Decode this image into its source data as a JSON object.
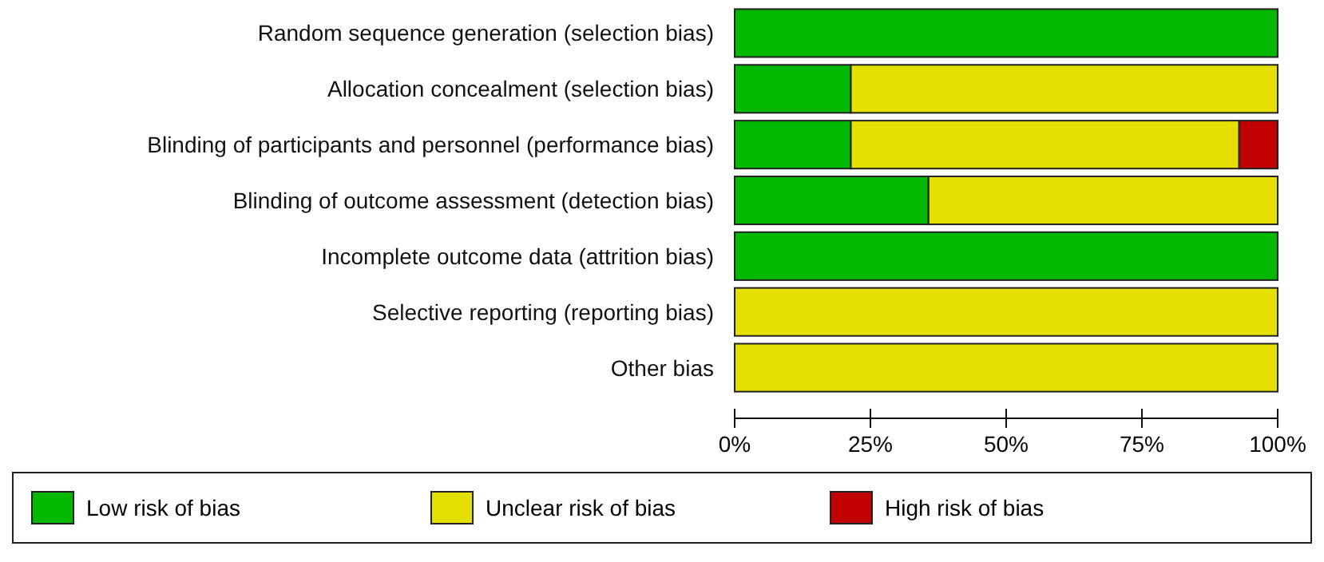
{
  "chart_data": {
    "type": "bar",
    "orientation": "horizontal",
    "stacked": true,
    "categories": [
      "Random sequence generation (selection bias)",
      "Allocation concealment (selection bias)",
      "Blinding of participants and personnel (performance bias)",
      "Blinding of outcome assessment (detection bias)",
      "Incomplete outcome data (attrition bias)",
      "Selective reporting (reporting bias)",
      "Other bias"
    ],
    "series": [
      {
        "name": "Low risk of bias",
        "color": "#00b800",
        "values": [
          100,
          21.4,
          21.4,
          35.7,
          100,
          0,
          0
        ]
      },
      {
        "name": "Unclear risk of bias",
        "color": "#e6e000",
        "values": [
          0,
          78.6,
          71.5,
          64.3,
          0,
          100,
          100
        ]
      },
      {
        "name": "High risk of bias",
        "color": "#c00000",
        "values": [
          0,
          0,
          7.1,
          0,
          0,
          0,
          0
        ]
      }
    ],
    "xlim": [
      0,
      100
    ],
    "xticks": [
      {
        "value": 0,
        "label": "0%"
      },
      {
        "value": 25,
        "label": "25%"
      },
      {
        "value": 50,
        "label": "50%"
      },
      {
        "value": 75,
        "label": "75%"
      },
      {
        "value": 100,
        "label": "100%"
      }
    ],
    "legend": "bottom",
    "grid": false
  }
}
